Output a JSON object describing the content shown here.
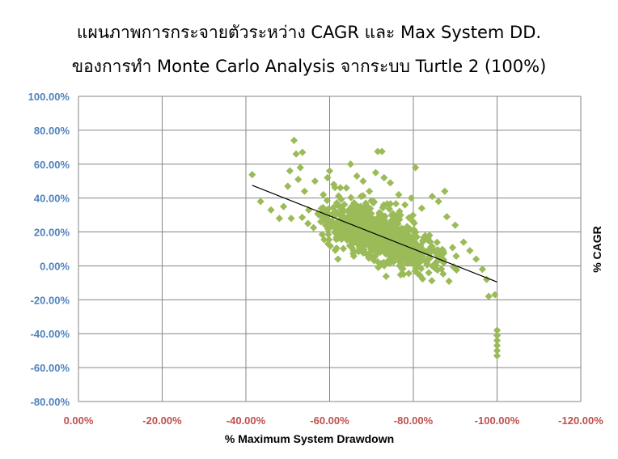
{
  "chart_data": {
    "type": "scatter",
    "title": "แผนภาพการกระจายตัวระหว่าง CAGR และ Max System DD.",
    "subtitle": "ของการทำ Monte Carlo Analysis จากระบบ Turtle 2 (100%)",
    "xlabel": "% Maximum System Drawdown",
    "ylabel": "% CAGR",
    "xlim": [
      0,
      -120
    ],
    "ylim": [
      -80,
      100
    ],
    "x_reversed": true,
    "grid": true,
    "legend": "none",
    "x_ticks": [
      "0.00%",
      "-20.00%",
      "-40.00%",
      "-60.00%",
      "-80.00%",
      "-100.00%",
      "-120.00%"
    ],
    "y_ticks": [
      "100.00%",
      "80.00%",
      "60.00%",
      "40.00%",
      "20.00%",
      "0.00%",
      "-20.00%",
      "-40.00%",
      "-60.00%",
      "-80.00%"
    ],
    "marker_color": "#9bbb59",
    "marker": "diamond",
    "trendline": {
      "type": "linear",
      "color": "#000000",
      "x": [
        -41.5,
        -100.0
      ],
      "y": [
        47.5,
        -9.5
      ]
    },
    "series": [
      {
        "values": [
          [
            -41.5,
            53.8
          ],
          [
            -43.5,
            38.0
          ],
          [
            -46.0,
            33.0
          ],
          [
            -48.0,
            28.0
          ],
          [
            -49.0,
            35.0
          ],
          [
            -50.0,
            47.0
          ],
          [
            -50.5,
            56.0
          ],
          [
            -51.5,
            74.0
          ],
          [
            -52.0,
            66.0
          ],
          [
            -52.5,
            51.0
          ],
          [
            -53.0,
            58.0
          ],
          [
            -53.5,
            67.0
          ],
          [
            -54.0,
            44.0
          ],
          [
            -55.0,
            33.0
          ],
          [
            -56.5,
            50.0
          ],
          [
            -57.5,
            30.0
          ],
          [
            -58.5,
            42.0
          ],
          [
            -59.5,
            52.0
          ],
          [
            -60.0,
            56.0
          ],
          [
            -61.0,
            48.0
          ],
          [
            -62.0,
            36.0
          ],
          [
            -63.0,
            25.0
          ],
          [
            -64.0,
            46.0
          ],
          [
            -65.0,
            60.0
          ],
          [
            -66.5,
            53.0
          ],
          [
            -67.5,
            41.0
          ],
          [
            -68.0,
            50.0
          ],
          [
            -69.5,
            44.0
          ],
          [
            -71.0,
            55.0
          ],
          [
            -71.5,
            67.5
          ],
          [
            -72.5,
            67.5
          ],
          [
            -73.0,
            52.0
          ],
          [
            -74.5,
            49.0
          ],
          [
            -76.5,
            42.0
          ],
          [
            -78.0,
            36.0
          ],
          [
            -79.5,
            40.0
          ],
          [
            -80.5,
            58.0
          ],
          [
            -82.0,
            34.0
          ],
          [
            -84.5,
            41.0
          ],
          [
            -86.0,
            38.0
          ],
          [
            -87.5,
            44.0
          ],
          [
            -88.0,
            29.0
          ],
          [
            -90.0,
            24.0
          ],
          [
            -92.0,
            14.0
          ],
          [
            -93.5,
            9.0
          ],
          [
            -95.0,
            4.0
          ],
          [
            -96.5,
            -2.0
          ],
          [
            -97.5,
            -8.0
          ],
          [
            -98.0,
            -18.0
          ],
          [
            -99.5,
            -17.0
          ],
          [
            -100.0,
            -38.0
          ],
          [
            -100.0,
            -41.0
          ],
          [
            -100.0,
            -44.0
          ],
          [
            -100.0,
            -47.0
          ],
          [
            -100.0,
            -50.0
          ],
          [
            -100.0,
            -53.0
          ]
        ]
      }
    ]
  }
}
